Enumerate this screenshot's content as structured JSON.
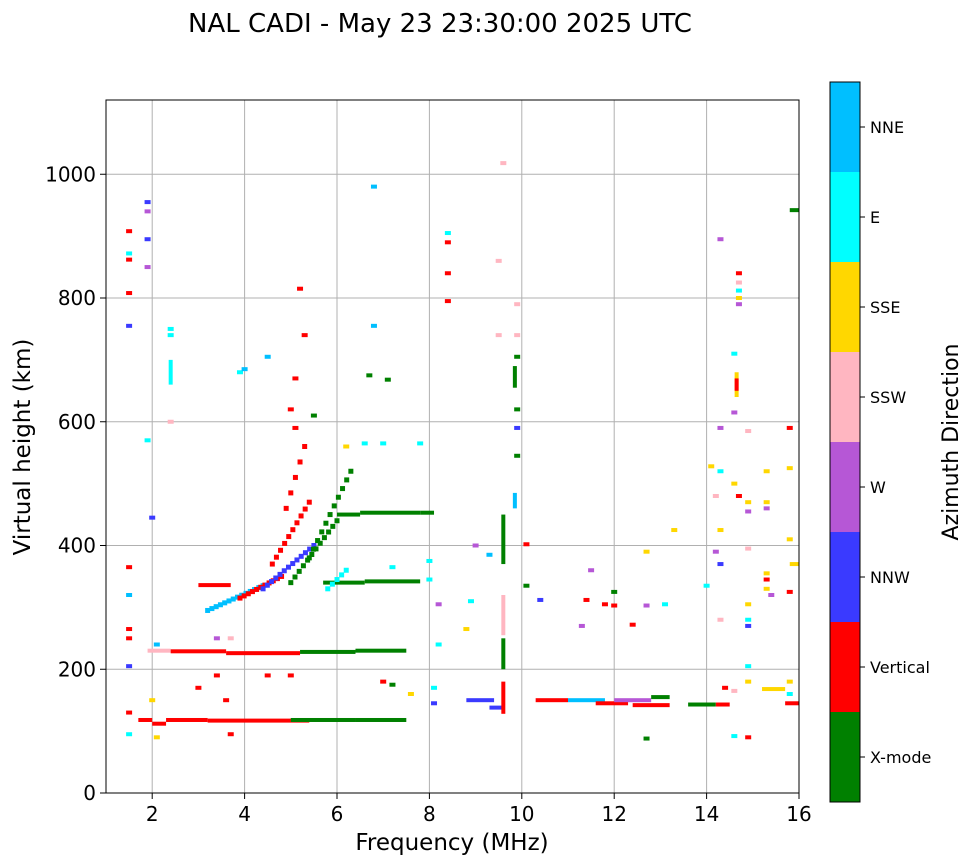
{
  "chart_data": {
    "type": "scatter",
    "title": "NAL CADI - May 23 23:30:00 2025 UTC",
    "xlabel": "Frequency (MHz)",
    "ylabel": "Virtual height (km)",
    "xlim": [
      1.0,
      16.0
    ],
    "ylim": [
      0,
      1120
    ],
    "xticks": [
      2,
      4,
      6,
      8,
      10,
      12,
      14,
      16
    ],
    "xtick_labels": [
      "2",
      "4",
      "6",
      "8",
      "10",
      "12",
      "14",
      "16"
    ],
    "yticks": [
      0,
      200,
      400,
      600,
      800,
      1000
    ],
    "ytick_labels": [
      "0",
      "200",
      "400",
      "600",
      "800",
      "1000"
    ],
    "grid": true,
    "colorbar": {
      "label": "Azimuth Direction",
      "categories": [
        "X-mode",
        "Vertical",
        "NNW",
        "W",
        "SSW",
        "SSE",
        "E",
        "NNE"
      ],
      "colors": [
        "#008000",
        "#ff0000",
        "#3a3aff",
        "#b657d6",
        "#ffb6c1",
        "#ffd700",
        "#00ffff",
        "#00bfff"
      ]
    },
    "segments": [
      {
        "f0": 2.3,
        "f1": 3.2,
        "h": 118,
        "dir": "Vertical"
      },
      {
        "f0": 3.2,
        "f1": 5.4,
        "h": 117,
        "dir": "Vertical"
      },
      {
        "f0": 5.0,
        "f1": 6.4,
        "h": 118,
        "dir": "X-mode"
      },
      {
        "f0": 6.4,
        "f1": 7.5,
        "h": 118,
        "dir": "X-mode"
      },
      {
        "f0": 2.0,
        "f1": 2.3,
        "h": 112,
        "dir": "Vertical"
      },
      {
        "f0": 1.7,
        "f1": 2.0,
        "h": 118,
        "dir": "Vertical"
      },
      {
        "f0": 1.9,
        "f1": 2.4,
        "h": 230,
        "dir": "SSW"
      },
      {
        "f0": 2.4,
        "f1": 3.6,
        "h": 229,
        "dir": "Vertical"
      },
      {
        "f0": 3.6,
        "f1": 5.2,
        "h": 226,
        "dir": "Vertical"
      },
      {
        "f0": 5.2,
        "f1": 6.4,
        "h": 228,
        "dir": "X-mode"
      },
      {
        "f0": 6.4,
        "f1": 7.5,
        "h": 230,
        "dir": "X-mode"
      },
      {
        "f0": 3.0,
        "f1": 3.7,
        "h": 336,
        "dir": "Vertical"
      },
      {
        "f0": 5.7,
        "f1": 6.6,
        "h": 340,
        "dir": "X-mode"
      },
      {
        "f0": 6.6,
        "f1": 7.8,
        "h": 342,
        "dir": "X-mode"
      },
      {
        "f0": 6.0,
        "f1": 6.5,
        "h": 450,
        "dir": "X-mode"
      },
      {
        "f0": 6.5,
        "f1": 7.8,
        "h": 453,
        "dir": "X-mode"
      },
      {
        "f0": 7.8,
        "f1": 8.1,
        "h": 453,
        "dir": "X-mode"
      },
      {
        "f0": 8.8,
        "f1": 9.4,
        "h": 150,
        "dir": "NNW"
      },
      {
        "f0": 9.3,
        "f1": 9.6,
        "h": 138,
        "dir": "NNW"
      },
      {
        "f0": 10.3,
        "f1": 11.0,
        "h": 150,
        "dir": "Vertical"
      },
      {
        "f0": 11.0,
        "f1": 11.8,
        "h": 150,
        "dir": "NNE"
      },
      {
        "f0": 11.6,
        "f1": 12.3,
        "h": 145,
        "dir": "Vertical"
      },
      {
        "f0": 12.0,
        "f1": 12.8,
        "h": 150,
        "dir": "W"
      },
      {
        "f0": 12.4,
        "f1": 13.2,
        "h": 142,
        "dir": "Vertical"
      },
      {
        "f0": 12.8,
        "f1": 13.2,
        "h": 155,
        "dir": "X-mode"
      },
      {
        "f0": 13.6,
        "f1": 14.2,
        "h": 143,
        "dir": "X-mode"
      },
      {
        "f0": 14.2,
        "f1": 14.5,
        "h": 143,
        "dir": "Vertical"
      },
      {
        "f0": 15.2,
        "f1": 15.7,
        "h": 168,
        "dir": "SSE"
      },
      {
        "f0": 15.7,
        "f1": 16.0,
        "h": 145,
        "dir": "Vertical"
      },
      {
        "f0": 15.8,
        "f1": 16.0,
        "h": 370,
        "dir": "SSE"
      },
      {
        "f0": 15.8,
        "f1": 16.0,
        "h": 942,
        "dir": "X-mode"
      }
    ],
    "vertical_traces": [
      {
        "f": 9.6,
        "h0": 128,
        "h1": 180,
        "dir": "Vertical"
      },
      {
        "f": 9.6,
        "h0": 200,
        "h1": 250,
        "dir": "X-mode"
      },
      {
        "f": 9.6,
        "h0": 255,
        "h1": 320,
        "dir": "SSW"
      },
      {
        "f": 9.6,
        "h0": 370,
        "h1": 450,
        "dir": "X-mode"
      },
      {
        "f": 9.85,
        "h0": 460,
        "h1": 485,
        "dir": "NNE"
      },
      {
        "f": 9.85,
        "h0": 655,
        "h1": 690,
        "dir": "X-mode"
      },
      {
        "f": 14.65,
        "h0": 640,
        "h1": 680,
        "dir": "SSE"
      },
      {
        "f": 14.65,
        "h0": 650,
        "h1": 670,
        "dir": "Vertical"
      },
      {
        "f": 2.4,
        "h0": 660,
        "h1": 700,
        "dir": "E"
      }
    ],
    "diagonal_traces": [
      {
        "f0": 3.2,
        "h0": 295,
        "f1": 4.4,
        "h1": 335,
        "dir": "NNE"
      },
      {
        "f0": 3.9,
        "h0": 315,
        "f1": 4.8,
        "h1": 350,
        "dir": "Vertical"
      },
      {
        "f0": 4.4,
        "h0": 330,
        "f1": 5.5,
        "h1": 400,
        "dir": "NNW"
      },
      {
        "f0": 4.6,
        "h0": 370,
        "f1": 5.4,
        "h1": 470,
        "dir": "Vertical"
      },
      {
        "f0": 5.0,
        "h0": 340,
        "f1": 6.0,
        "h1": 440,
        "dir": "X-mode"
      },
      {
        "f0": 5.4,
        "h0": 380,
        "f1": 6.3,
        "h1": 520,
        "dir": "X-mode"
      },
      {
        "f0": 4.9,
        "h0": 460,
        "f1": 5.3,
        "h1": 560,
        "dir": "Vertical"
      },
      {
        "f0": 5.8,
        "h0": 330,
        "f1": 6.2,
        "h1": 360,
        "dir": "E"
      }
    ],
    "points": [
      {
        "f": 1.5,
        "h": 95,
        "dir": "E"
      },
      {
        "f": 1.5,
        "h": 130,
        "dir": "Vertical"
      },
      {
        "f": 1.5,
        "h": 205,
        "dir": "NNW"
      },
      {
        "f": 1.5,
        "h": 250,
        "dir": "Vertical"
      },
      {
        "f": 1.5,
        "h": 265,
        "dir": "Vertical"
      },
      {
        "f": 1.5,
        "h": 320,
        "dir": "NNE"
      },
      {
        "f": 1.5,
        "h": 365,
        "dir": "Vertical"
      },
      {
        "f": 1.5,
        "h": 755,
        "dir": "NNW"
      },
      {
        "f": 1.5,
        "h": 808,
        "dir": "Vertical"
      },
      {
        "f": 1.5,
        "h": 862,
        "dir": "Vertical"
      },
      {
        "f": 1.5,
        "h": 872,
        "dir": "E"
      },
      {
        "f": 1.5,
        "h": 908,
        "dir": "Vertical"
      },
      {
        "f": 1.9,
        "h": 850,
        "dir": "W"
      },
      {
        "f": 1.9,
        "h": 895,
        "dir": "NNW"
      },
      {
        "f": 1.9,
        "h": 940,
        "dir": "W"
      },
      {
        "f": 1.9,
        "h": 955,
        "dir": "NNW"
      },
      {
        "f": 1.9,
        "h": 570,
        "dir": "E"
      },
      {
        "f": 2.0,
        "h": 445,
        "dir": "NNW"
      },
      {
        "f": 2.1,
        "h": 240,
        "dir": "NNE"
      },
      {
        "f": 2.0,
        "h": 150,
        "dir": "SSE"
      },
      {
        "f": 2.1,
        "h": 90,
        "dir": "SSE"
      },
      {
        "f": 2.4,
        "h": 600,
        "dir": "SSW"
      },
      {
        "f": 2.4,
        "h": 750,
        "dir": "E"
      },
      {
        "f": 2.4,
        "h": 740,
        "dir": "E"
      },
      {
        "f": 3.4,
        "h": 250,
        "dir": "W"
      },
      {
        "f": 3.7,
        "h": 250,
        "dir": "SSW"
      },
      {
        "f": 3.9,
        "h": 680,
        "dir": "E"
      },
      {
        "f": 4.0,
        "h": 685,
        "dir": "NNE"
      },
      {
        "f": 4.5,
        "h": 705,
        "dir": "NNE"
      },
      {
        "f": 5.0,
        "h": 190,
        "dir": "Vertical"
      },
      {
        "f": 4.5,
        "h": 190,
        "dir": "Vertical"
      },
      {
        "f": 3.4,
        "h": 190,
        "dir": "Vertical"
      },
      {
        "f": 3.0,
        "h": 170,
        "dir": "Vertical"
      },
      {
        "f": 3.6,
        "h": 150,
        "dir": "Vertical"
      },
      {
        "f": 3.7,
        "h": 95,
        "dir": "Vertical"
      },
      {
        "f": 5.1,
        "h": 590,
        "dir": "Vertical"
      },
      {
        "f": 5.0,
        "h": 620,
        "dir": "Vertical"
      },
      {
        "f": 5.1,
        "h": 670,
        "dir": "Vertical"
      },
      {
        "f": 5.2,
        "h": 815,
        "dir": "Vertical"
      },
      {
        "f": 5.3,
        "h": 740,
        "dir": "Vertical"
      },
      {
        "f": 5.5,
        "h": 610,
        "dir": "X-mode"
      },
      {
        "f": 6.2,
        "h": 560,
        "dir": "SSE"
      },
      {
        "f": 6.6,
        "h": 565,
        "dir": "E"
      },
      {
        "f": 7.0,
        "h": 565,
        "dir": "E"
      },
      {
        "f": 7.8,
        "h": 565,
        "dir": "E"
      },
      {
        "f": 6.8,
        "h": 980,
        "dir": "NNE"
      },
      {
        "f": 6.8,
        "h": 755,
        "dir": "NNE"
      },
      {
        "f": 6.7,
        "h": 675,
        "dir": "X-mode"
      },
      {
        "f": 7.1,
        "h": 668,
        "dir": "X-mode"
      },
      {
        "f": 7.2,
        "h": 365,
        "dir": "E"
      },
      {
        "f": 7.0,
        "h": 180,
        "dir": "Vertical"
      },
      {
        "f": 7.2,
        "h": 175,
        "dir": "X-mode"
      },
      {
        "f": 7.6,
        "h": 160,
        "dir": "SSE"
      },
      {
        "f": 8.0,
        "h": 345,
        "dir": "E"
      },
      {
        "f": 8.0,
        "h": 375,
        "dir": "E"
      },
      {
        "f": 8.2,
        "h": 305,
        "dir": "W"
      },
      {
        "f": 8.2,
        "h": 240,
        "dir": "E"
      },
      {
        "f": 8.1,
        "h": 170,
        "dir": "E"
      },
      {
        "f": 8.1,
        "h": 145,
        "dir": "NNW"
      },
      {
        "f": 8.4,
        "h": 890,
        "dir": "Vertical"
      },
      {
        "f": 8.4,
        "h": 905,
        "dir": "E"
      },
      {
        "f": 8.4,
        "h": 840,
        "dir": "Vertical"
      },
      {
        "f": 8.4,
        "h": 795,
        "dir": "Vertical"
      },
      {
        "f": 8.8,
        "h": 265,
        "dir": "SSE"
      },
      {
        "f": 9.0,
        "h": 400,
        "dir": "W"
      },
      {
        "f": 9.3,
        "h": 385,
        "dir": "NNE"
      },
      {
        "f": 9.5,
        "h": 740,
        "dir": "SSW"
      },
      {
        "f": 9.5,
        "h": 860,
        "dir": "SSW"
      },
      {
        "f": 9.6,
        "h": 1018,
        "dir": "SSW"
      },
      {
        "f": 9.9,
        "h": 790,
        "dir": "SSW"
      },
      {
        "f": 9.9,
        "h": 740,
        "dir": "SSW"
      },
      {
        "f": 9.9,
        "h": 705,
        "dir": "X-mode"
      },
      {
        "f": 9.9,
        "h": 620,
        "dir": "X-mode"
      },
      {
        "f": 9.9,
        "h": 590,
        "dir": "NNW"
      },
      {
        "f": 9.9,
        "h": 545,
        "dir": "X-mode"
      },
      {
        "f": 10.1,
        "h": 402,
        "dir": "Vertical"
      },
      {
        "f": 10.1,
        "h": 335,
        "dir": "X-mode"
      },
      {
        "f": 10.4,
        "h": 312,
        "dir": "NNW"
      },
      {
        "f": 11.5,
        "h": 360,
        "dir": "W"
      },
      {
        "f": 11.4,
        "h": 312,
        "dir": "Vertical"
      },
      {
        "f": 11.8,
        "h": 305,
        "dir": "Vertical"
      },
      {
        "f": 12.0,
        "h": 325,
        "dir": "X-mode"
      },
      {
        "f": 12.0,
        "h": 303,
        "dir": "Vertical"
      },
      {
        "f": 12.7,
        "h": 303,
        "dir": "W"
      },
      {
        "f": 13.1,
        "h": 305,
        "dir": "E"
      },
      {
        "f": 12.7,
        "h": 390,
        "dir": "SSE"
      },
      {
        "f": 13.3,
        "h": 425,
        "dir": "SSE"
      },
      {
        "f": 12.4,
        "h": 272,
        "dir": "Vertical"
      },
      {
        "f": 11.3,
        "h": 270,
        "dir": "W"
      },
      {
        "f": 12.7,
        "h": 88,
        "dir": "X-mode"
      },
      {
        "f": 14.0,
        "h": 335,
        "dir": "E"
      },
      {
        "f": 14.1,
        "h": 528,
        "dir": "SSE"
      },
      {
        "f": 14.3,
        "h": 520,
        "dir": "E"
      },
      {
        "f": 14.3,
        "h": 590,
        "dir": "W"
      },
      {
        "f": 14.6,
        "h": 615,
        "dir": "W"
      },
      {
        "f": 14.3,
        "h": 895,
        "dir": "W"
      },
      {
        "f": 14.7,
        "h": 840,
        "dir": "Vertical"
      },
      {
        "f": 14.7,
        "h": 825,
        "dir": "SSW"
      },
      {
        "f": 14.7,
        "h": 812,
        "dir": "E"
      },
      {
        "f": 14.7,
        "h": 800,
        "dir": "SSE"
      },
      {
        "f": 14.7,
        "h": 790,
        "dir": "W"
      },
      {
        "f": 14.6,
        "h": 710,
        "dir": "E"
      },
      {
        "f": 14.9,
        "h": 585,
        "dir": "SSW"
      },
      {
        "f": 14.2,
        "h": 480,
        "dir": "SSW"
      },
      {
        "f": 14.6,
        "h": 500,
        "dir": "SSE"
      },
      {
        "f": 14.7,
        "h": 480,
        "dir": "Vertical"
      },
      {
        "f": 14.9,
        "h": 470,
        "dir": "SSE"
      },
      {
        "f": 14.9,
        "h": 455,
        "dir": "W"
      },
      {
        "f": 14.3,
        "h": 425,
        "dir": "SSE"
      },
      {
        "f": 14.9,
        "h": 395,
        "dir": "SSW"
      },
      {
        "f": 14.2,
        "h": 390,
        "dir": "W"
      },
      {
        "f": 14.3,
        "h": 370,
        "dir": "NNW"
      },
      {
        "f": 14.3,
        "h": 280,
        "dir": "SSW"
      },
      {
        "f": 14.9,
        "h": 305,
        "dir": "SSE"
      },
      {
        "f": 14.9,
        "h": 280,
        "dir": "E"
      },
      {
        "f": 14.9,
        "h": 270,
        "dir": "NNW"
      },
      {
        "f": 14.9,
        "h": 205,
        "dir": "E"
      },
      {
        "f": 14.9,
        "h": 180,
        "dir": "SSE"
      },
      {
        "f": 14.4,
        "h": 170,
        "dir": "Vertical"
      },
      {
        "f": 14.6,
        "h": 165,
        "dir": "SSW"
      },
      {
        "f": 14.6,
        "h": 92,
        "dir": "E"
      },
      {
        "f": 14.9,
        "h": 90,
        "dir": "Vertical"
      },
      {
        "f": 15.3,
        "h": 520,
        "dir": "SSE"
      },
      {
        "f": 15.3,
        "h": 470,
        "dir": "SSE"
      },
      {
        "f": 15.3,
        "h": 460,
        "dir": "W"
      },
      {
        "f": 15.3,
        "h": 355,
        "dir": "SSE"
      },
      {
        "f": 15.3,
        "h": 345,
        "dir": "Vertical"
      },
      {
        "f": 15.3,
        "h": 330,
        "dir": "SSE"
      },
      {
        "f": 15.4,
        "h": 320,
        "dir": "W"
      },
      {
        "f": 15.8,
        "h": 590,
        "dir": "Vertical"
      },
      {
        "f": 15.8,
        "h": 525,
        "dir": "SSE"
      },
      {
        "f": 15.8,
        "h": 410,
        "dir": "SSE"
      },
      {
        "f": 15.8,
        "h": 325,
        "dir": "Vertical"
      },
      {
        "f": 15.8,
        "h": 180,
        "dir": "SSE"
      },
      {
        "f": 15.8,
        "h": 160,
        "dir": "E"
      },
      {
        "f": 8.9,
        "h": 310,
        "dir": "E"
      }
    ]
  }
}
